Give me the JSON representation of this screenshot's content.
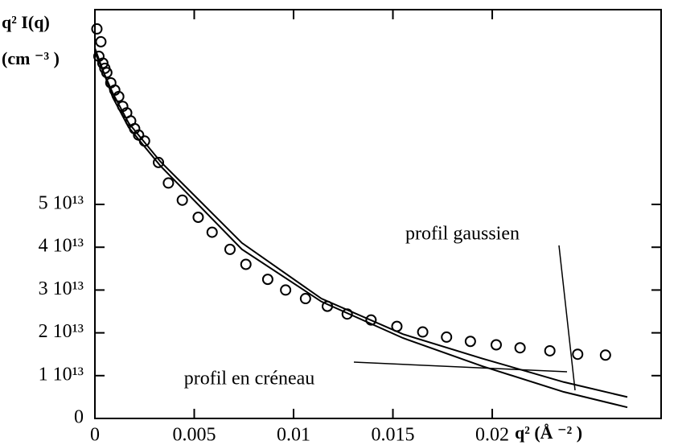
{
  "chart_data": {
    "type": "scatter",
    "y_label_lines": [
      "q² I(q)",
      "(cm ⁻³ )"
    ],
    "x_label": "q² (Å ⁻² )",
    "xlim": [
      0,
      0.0285
    ],
    "ylim": [
      0,
      95500000000000.0
    ],
    "xticks": [
      0,
      0.005,
      0.01,
      0.015,
      0.02
    ],
    "yticks": [
      0,
      {
        "value": 10000000000000.0,
        "label": "1 10¹³"
      },
      {
        "value": 20000000000000.0,
        "label": "2 10¹³"
      },
      {
        "value": 30000000000000.0,
        "label": "3 10¹³"
      },
      {
        "value": 40000000000000.0,
        "label": "4 10¹³"
      },
      {
        "value": 50000000000000.0,
        "label": "5 10¹³"
      }
    ],
    "points": {
      "color": "#000000",
      "x": [
        0.0001,
        0.0002,
        0.0003,
        0.0004,
        0.0005,
        0.0006,
        0.0008,
        0.001,
        0.0012,
        0.0014,
        0.0016,
        0.0018,
        0.002,
        0.0022,
        0.0025,
        0.0032,
        0.0037,
        0.0044,
        0.0052,
        0.0059,
        0.0068,
        0.0076,
        0.0087,
        0.0096,
        0.0106,
        0.0117,
        0.0127,
        0.0139,
        0.0152,
        0.0165,
        0.0177,
        0.0189,
        0.0202,
        0.0214,
        0.0229,
        0.0243,
        0.0257
      ],
      "values": [
        91000000000000.0,
        84600000000000.0,
        88000000000000.0,
        83000000000000.0,
        81800000000000.0,
        80800000000000.0,
        78400000000000.0,
        76700000000000.0,
        75200000000000.0,
        72900000000000.0,
        71400000000000.0,
        69500000000000.0,
        67700000000000.0,
        66200000000000.0,
        64800000000000.0,
        59800000000000.0,
        55000000000000.0,
        51000000000000.0,
        47000000000000.0,
        43500000000000.0,
        39500000000000.0,
        36000000000000.0,
        32500000000000.0,
        30000000000000.0,
        28000000000000.0,
        26200000000000.0,
        24400000000000.0,
        23000000000000.0,
        21500000000000.0,
        20200000000000.0,
        19000000000000.0,
        18000000000000.0,
        17200000000000.0,
        16500000000000.0,
        15800000000000.0,
        15000000000000.0,
        14800000000000.0
      ]
    },
    "series": [
      {
        "name": "profil gaussien",
        "color": "#000000",
        "x": [
          0,
          0.0009,
          0.0017,
          0.0033,
          0.0074,
          0.0114,
          0.0155,
          0.0195,
          0.0236,
          0.0268
        ],
        "values": [
          85500000000000.0,
          76000000000000.0,
          69000000000000.0,
          60000000000000.0,
          41000000000000.0,
          28000000000000.0,
          19700000000000.0,
          14000000000000.0,
          8500000000000.0,
          5000000000000.0
        ]
      },
      {
        "name": "profil en créneau",
        "color": "#000000",
        "x": [
          0,
          0.0009,
          0.0017,
          0.0033,
          0.0074,
          0.0114,
          0.0155,
          0.0195,
          0.0236,
          0.0268
        ],
        "values": [
          86500000000000.0,
          75000000000000.0,
          68000000000000.0,
          59000000000000.0,
          39500000000000.0,
          27300000000000.0,
          18800000000000.0,
          12200000000000.0,
          6200000000000.0,
          2600000000000.0
        ]
      }
    ]
  }
}
